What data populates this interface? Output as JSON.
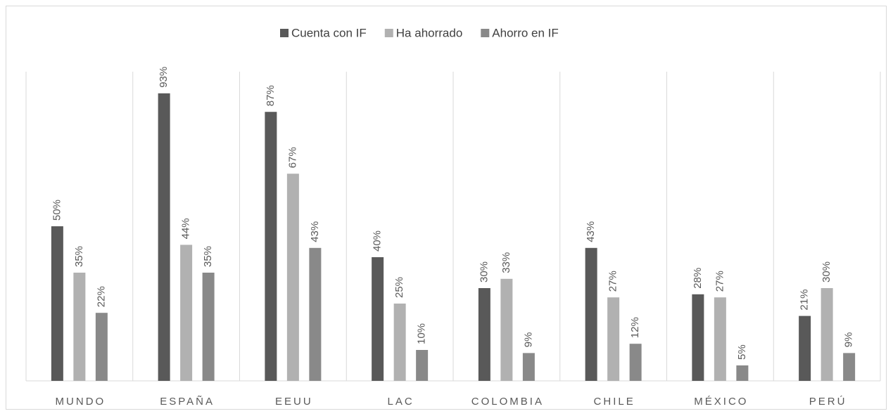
{
  "chart_data": {
    "type": "bar",
    "categories": [
      "MUNDO",
      "ESPAÑA",
      "EEUU",
      "LAC",
      "COLOMBIA",
      "CHILE",
      "MÉXICO",
      "PERÚ"
    ],
    "series": [
      {
        "name": "Cuenta con IF",
        "color": "#595959",
        "values": [
          50,
          93,
          87,
          40,
          30,
          43,
          28,
          21
        ],
        "value_labels": [
          "50%",
          "93%",
          "87%",
          "40%",
          "30%",
          "43%",
          "28%",
          "21%"
        ]
      },
      {
        "name": "Ha ahorrado",
        "color": "#b1b1b1",
        "values": [
          35,
          44,
          67,
          25,
          33,
          27,
          27,
          30
        ],
        "value_labels": [
          "35%",
          "44%",
          "67%",
          "25%",
          "33%",
          "27%",
          "27%",
          "30%"
        ]
      },
      {
        "name": "Ahorro en IF",
        "color": "#898989",
        "values": [
          22,
          35,
          43,
          10,
          9,
          12,
          5,
          9
        ],
        "value_labels": [
          "22%",
          "35%",
          "43%",
          "10%",
          "9%",
          "12%",
          "5%",
          "9%"
        ]
      }
    ],
    "ylim": [
      0,
      100
    ],
    "legend": "top"
  }
}
